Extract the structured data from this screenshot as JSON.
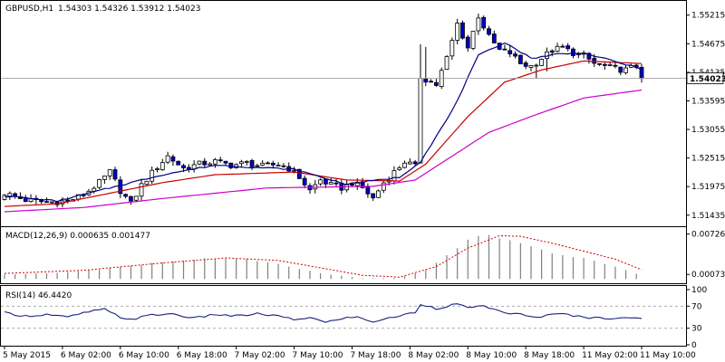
{
  "header": {
    "symbol": "GBPUSD,H1",
    "ohlc": "1.54303 1.54326 1.53912 1.54023"
  },
  "current_price_label": "1.54023",
  "colors": {
    "candle_up": "#ffffff",
    "candle_down": "#0000cc",
    "candle_outline": "#000000",
    "ma_fast": "#000080",
    "ma_mid": "#cc0000",
    "ma_slow": "#cc00cc",
    "macd_hist": "#808080",
    "macd_signal": "#cc0000",
    "rsi_line": "#1a237e",
    "grid_dash": "#a0a0a0"
  },
  "chart_data": [
    {
      "panel": "price",
      "type": "candlestick",
      "ylim": [
        1.5126,
        1.5545
      ],
      "y_ticks": [
        "1.55215",
        "1.54675",
        "1.54135",
        "1.53595",
        "1.53055",
        "1.52515",
        "1.51975",
        "1.51435"
      ],
      "current_price": 1.54023,
      "x_tick_labels": [
        "5 May 2015",
        "6 May 02:00",
        "6 May 10:00",
        "6 May 18:00",
        "7 May 02:00",
        "7 May 10:00",
        "7 May 18:00",
        "8 May 02:00",
        "8 May 10:00",
        "8 May 18:00",
        "11 May 02:00",
        "11 May 10:00"
      ],
      "anchors": [
        [
          0,
          1.5185
        ],
        [
          4,
          1.5172
        ],
        [
          8,
          1.5168
        ],
        [
          12,
          1.517
        ],
        [
          15,
          1.5182
        ],
        [
          18,
          1.5205
        ],
        [
          20,
          1.5225
        ],
        [
          22,
          1.519
        ],
        [
          24,
          1.5165
        ],
        [
          26,
          1.52
        ],
        [
          29,
          1.5235
        ],
        [
          31,
          1.5255
        ],
        [
          34,
          1.5232
        ],
        [
          37,
          1.524
        ],
        [
          40,
          1.5245
        ],
        [
          43,
          1.5238
        ],
        [
          46,
          1.5242
        ],
        [
          49,
          1.5236
        ],
        [
          52,
          1.524
        ],
        [
          54,
          1.5232
        ],
        [
          56,
          1.5215
        ],
        [
          58,
          1.519
        ],
        [
          60,
          1.521
        ],
        [
          62,
          1.52
        ],
        [
          64,
          1.5195
        ],
        [
          66,
          1.5205
        ],
        [
          68,
          1.5195
        ],
        [
          70,
          1.5175
        ],
        [
          72,
          1.5205
        ],
        [
          74,
          1.5225
        ],
        [
          76,
          1.5245
        ],
        [
          78,
          1.5235
        ],
        [
          79,
          1.5405
        ],
        [
          80,
          1.54
        ],
        [
          82,
          1.539
        ],
        [
          84,
          1.544
        ],
        [
          86,
          1.5505
        ],
        [
          88,
          1.546
        ],
        [
          90,
          1.552
        ],
        [
          92,
          1.548
        ],
        [
          94,
          1.5455
        ],
        [
          96,
          1.545
        ],
        [
          98,
          1.543
        ],
        [
          100,
          1.5425
        ],
        [
          102,
          1.544
        ],
        [
          104,
          1.5455
        ],
        [
          106,
          1.546
        ],
        [
          108,
          1.545
        ],
        [
          110,
          1.5445
        ],
        [
          112,
          1.543
        ],
        [
          114,
          1.5425
        ],
        [
          116,
          1.542
        ],
        [
          118,
          1.5418
        ],
        [
          120,
          1.5425
        ],
        [
          121,
          1.5402
        ]
      ],
      "ma_fast_anchors": [
        [
          0,
          1.518
        ],
        [
          10,
          1.517
        ],
        [
          20,
          1.5195
        ],
        [
          30,
          1.522
        ],
        [
          40,
          1.5238
        ],
        [
          55,
          1.523
        ],
        [
          65,
          1.5202
        ],
        [
          75,
          1.5215
        ],
        [
          79,
          1.5245
        ],
        [
          85,
          1.534
        ],
        [
          90,
          1.5445
        ],
        [
          95,
          1.547
        ],
        [
          100,
          1.544
        ],
        [
          105,
          1.5448
        ],
        [
          110,
          1.545
        ],
        [
          121,
          1.542
        ]
      ],
      "ma_mid_anchors": [
        [
          0,
          1.516
        ],
        [
          10,
          1.5165
        ],
        [
          20,
          1.5185
        ],
        [
          30,
          1.5205
        ],
        [
          40,
          1.522
        ],
        [
          55,
          1.5225
        ],
        [
          65,
          1.521
        ],
        [
          75,
          1.5208
        ],
        [
          80,
          1.524
        ],
        [
          88,
          1.533
        ],
        [
          95,
          1.5395
        ],
        [
          102,
          1.5418
        ],
        [
          110,
          1.5435
        ],
        [
          121,
          1.543
        ]
      ],
      "ma_slow_anchors": [
        [
          0,
          1.515
        ],
        [
          15,
          1.5158
        ],
        [
          30,
          1.5175
        ],
        [
          50,
          1.5195
        ],
        [
          70,
          1.5198
        ],
        [
          78,
          1.521
        ],
        [
          85,
          1.5255
        ],
        [
          92,
          1.53
        ],
        [
          100,
          1.533
        ],
        [
          110,
          1.5365
        ],
        [
          121,
          1.538
        ]
      ]
    },
    {
      "panel": "macd",
      "type": "bar",
      "title": "MACD(12,26,9) 0.000635 0.001477",
      "y_ticks": [
        "0.007265",
        "0.000739"
      ],
      "ylim": [
        -0.0004,
        0.0078
      ],
      "hist_anchors": [
        [
          0,
          0.0008
        ],
        [
          10,
          0.001
        ],
        [
          20,
          0.0018
        ],
        [
          30,
          0.0028
        ],
        [
          40,
          0.0035
        ],
        [
          45,
          0.0035
        ],
        [
          52,
          0.0025
        ],
        [
          60,
          0.001
        ],
        [
          68,
          0.0001
        ],
        [
          75,
          0.0002
        ],
        [
          80,
          0.0015
        ],
        [
          86,
          0.0055
        ],
        [
          90,
          0.0074
        ],
        [
          94,
          0.0072
        ],
        [
          98,
          0.006
        ],
        [
          104,
          0.0045
        ],
        [
          110,
          0.0035
        ],
        [
          116,
          0.0022
        ],
        [
          121,
          0.0006
        ]
      ],
      "signal_anchors": [
        [
          0,
          0.0009
        ],
        [
          15,
          0.0014
        ],
        [
          30,
          0.0026
        ],
        [
          42,
          0.0034
        ],
        [
          52,
          0.003
        ],
        [
          60,
          0.0018
        ],
        [
          68,
          0.0006
        ],
        [
          75,
          0.0003
        ],
        [
          82,
          0.002
        ],
        [
          88,
          0.005
        ],
        [
          94,
          0.007
        ],
        [
          98,
          0.0069
        ],
        [
          104,
          0.0058
        ],
        [
          110,
          0.0045
        ],
        [
          116,
          0.0032
        ],
        [
          121,
          0.0015
        ]
      ]
    },
    {
      "panel": "rsi",
      "type": "line",
      "title": "RSI(14) 46.4420",
      "y_ticks": [
        "100",
        "70",
        "30",
        "0"
      ],
      "ylim": [
        0,
        100
      ],
      "levels": [
        70,
        30
      ],
      "rsi_anchors": [
        [
          0,
          58
        ],
        [
          4,
          52
        ],
        [
          8,
          55
        ],
        [
          12,
          50
        ],
        [
          16,
          60
        ],
        [
          19,
          64
        ],
        [
          22,
          50
        ],
        [
          24,
          46
        ],
        [
          28,
          54
        ],
        [
          32,
          56
        ],
        [
          36,
          48
        ],
        [
          40,
          55
        ],
        [
          44,
          52
        ],
        [
          48,
          56
        ],
        [
          52,
          52
        ],
        [
          55,
          45
        ],
        [
          58,
          50
        ],
        [
          61,
          40
        ],
        [
          64,
          48
        ],
        [
          67,
          50
        ],
        [
          70,
          42
        ],
        [
          73,
          48
        ],
        [
          76,
          55
        ],
        [
          78,
          58
        ],
        [
          79,
          74
        ],
        [
          82,
          66
        ],
        [
          86,
          74
        ],
        [
          88,
          66
        ],
        [
          90,
          72
        ],
        [
          94,
          60
        ],
        [
          98,
          55
        ],
        [
          100,
          50
        ],
        [
          103,
          53
        ],
        [
          106,
          56
        ],
        [
          110,
          50
        ],
        [
          114,
          48
        ],
        [
          118,
          50
        ],
        [
          121,
          46
        ]
      ]
    }
  ]
}
